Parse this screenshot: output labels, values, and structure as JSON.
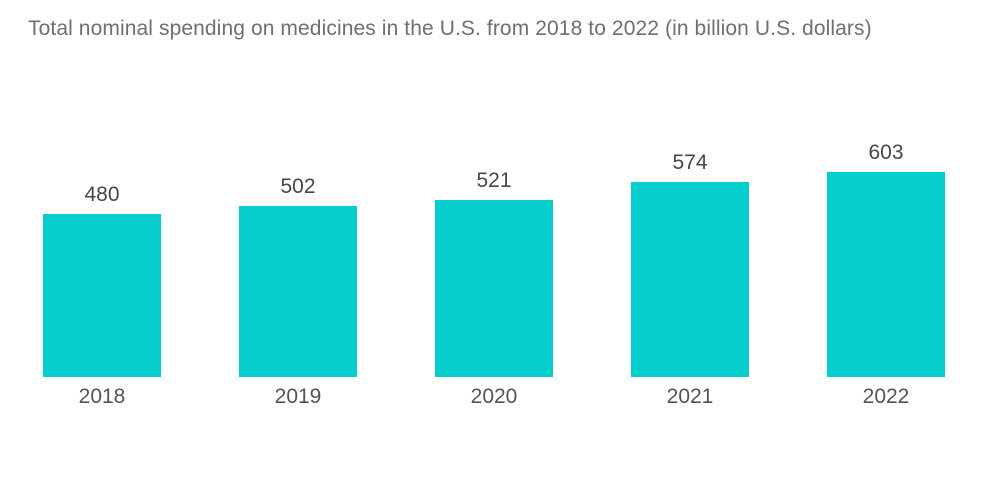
{
  "chart_data": {
    "type": "bar",
    "title": "Total nominal spending on medicines in the U.S. from 2018 to 2022 (in billion U.S. dollars)",
    "categories": [
      "2018",
      "2019",
      "2020",
      "2021",
      "2022"
    ],
    "values": [
      480,
      502,
      521,
      574,
      603
    ],
    "xlabel": "",
    "ylabel": "",
    "unit": "billion U.S. dollars",
    "ylim": [
      0,
      650
    ],
    "baseline": 0,
    "grid": false,
    "legend": "none",
    "data_labels": "above bars",
    "colors": {
      "bar": "#05CCCD",
      "title_text": "#6F6F6F",
      "value_label_text": "#474747",
      "category_label_text": "#545454",
      "background": "#FFFFFF"
    }
  }
}
